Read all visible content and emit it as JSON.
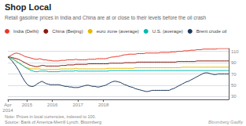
{
  "chart_data": {
    "type": "line",
    "title": "Shop Local",
    "subtitle": "Retail gasoline prices in India and China are at or close to their levels before the oil crash",
    "annotations": [
      "Note: Prices in local currencies, indexed to 100.\nSource: Bank of America-Merrill Lynch, Bloomberg",
      "Bloomberg Gadfly"
    ],
    "categories": [
      "Apr\n2014",
      null,
      null,
      null,
      null,
      null,
      null,
      null,
      null,
      "2015",
      null,
      null,
      null,
      null,
      null,
      null,
      null,
      null,
      null,
      null,
      null,
      "2016",
      null,
      null,
      null,
      null,
      null,
      null,
      null,
      null,
      null,
      null,
      null,
      "2017",
      null,
      null,
      null,
      null,
      null,
      null,
      null,
      null,
      null,
      null,
      null,
      "2018",
      null,
      null,
      null,
      null,
      null,
      null,
      null,
      null,
      null,
      null,
      null,
      null,
      null,
      null,
      null,
      null,
      null,
      null,
      null,
      null,
      null,
      null,
      null,
      null,
      null,
      null,
      null,
      null,
      null,
      null,
      null,
      null,
      null,
      null,
      null,
      null,
      null,
      null,
      null,
      null,
      null,
      null,
      null,
      null,
      null,
      null,
      null,
      null,
      null,
      null,
      null,
      null,
      null,
      null,
      null,
      null,
      null,
      null,
      null
    ],
    "series": [
      {
        "name": "India (Delhi)",
        "color": "#e8392a",
        "values": [
          100,
          102,
          104,
          106,
          107,
          106,
          105,
          103,
          101,
          100,
          99,
          98,
          97,
          96,
          96,
          97,
          96,
          95,
          95,
          94,
          94,
          93,
          93,
          93,
          93,
          94,
          94,
          94,
          95,
          95,
          95,
          95,
          96,
          95,
          95,
          95,
          95,
          95,
          96,
          96,
          96,
          96,
          97,
          97,
          97,
          97,
          97,
          98,
          99,
          100,
          100,
          101,
          101,
          102,
          103,
          104,
          104,
          105,
          105,
          105,
          105,
          106,
          106,
          106,
          106,
          107,
          107,
          107,
          107,
          107,
          107,
          107,
          108,
          108,
          108,
          108,
          108,
          109,
          109,
          109,
          110,
          110,
          110,
          111,
          111,
          111,
          112,
          112,
          112,
          113,
          113,
          113,
          114,
          114,
          114,
          114,
          114,
          114,
          114,
          115,
          115,
          115,
          115,
          115,
          115
        ]
      },
      {
        "name": "China (Beijing)",
        "color": "#8b1a10",
        "values": [
          100,
          100,
          99,
          98,
          97,
          96,
          94,
          92,
          90,
          88,
          86,
          85,
          84,
          83,
          83,
          84,
          85,
          85,
          84,
          84,
          84,
          84,
          84,
          84,
          84,
          85,
          85,
          85,
          86,
          86,
          86,
          86,
          87,
          87,
          87,
          87,
          87,
          87,
          88,
          88,
          88,
          88,
          88,
          88,
          88,
          88,
          88,
          88,
          89,
          89,
          89,
          89,
          89,
          89,
          89,
          90,
          90,
          90,
          90,
          90,
          90,
          91,
          91,
          91,
          91,
          91,
          91,
          91,
          91,
          91,
          91,
          91,
          91,
          91,
          91,
          91,
          91,
          91,
          91,
          91,
          92,
          92,
          92,
          92,
          92,
          92,
          92,
          92,
          92,
          93,
          93,
          93,
          93,
          93,
          93,
          93,
          93,
          93,
          93,
          93,
          93,
          93,
          93,
          93,
          93
        ]
      },
      {
        "name": "euro zone (average)",
        "color": "#e8b800",
        "values": [
          100,
          99,
          97,
          95,
          93,
          90,
          88,
          85,
          83,
          81,
          80,
          79,
          79,
          79,
          79,
          79,
          78,
          78,
          78,
          78,
          78,
          78,
          78,
          78,
          78,
          79,
          79,
          79,
          79,
          79,
          79,
          79,
          80,
          79,
          79,
          79,
          79,
          79,
          79,
          79,
          79,
          79,
          79,
          79,
          79,
          79,
          79,
          80,
          80,
          80,
          80,
          80,
          80,
          80,
          80,
          80,
          80,
          80,
          80,
          80,
          81,
          81,
          81,
          81,
          81,
          81,
          81,
          81,
          81,
          81,
          81,
          81,
          81,
          81,
          81,
          81,
          81,
          81,
          81,
          81,
          81,
          81,
          82,
          82,
          82,
          82,
          82,
          82,
          82,
          82,
          82,
          82,
          82,
          82,
          82,
          82,
          82,
          82,
          82,
          82,
          82,
          82,
          82,
          82,
          82
        ]
      },
      {
        "name": "U.S. (average)",
        "color": "#00bbb4",
        "values": [
          100,
          99,
          97,
          95,
          92,
          90,
          87,
          85,
          82,
          80,
          78,
          76,
          75,
          74,
          74,
          75,
          75,
          75,
          75,
          74,
          74,
          74,
          74,
          74,
          74,
          75,
          75,
          75,
          75,
          75,
          75,
          75,
          76,
          75,
          75,
          75,
          75,
          75,
          75,
          75,
          75,
          75,
          75,
          75,
          75,
          75,
          75,
          75,
          76,
          76,
          76,
          76,
          76,
          76,
          76,
          76,
          76,
          76,
          76,
          76,
          76,
          76,
          76,
          76,
          76,
          76,
          76,
          76,
          76,
          76,
          76,
          76,
          76,
          76,
          76,
          76,
          76,
          76,
          76,
          76,
          76,
          76,
          76,
          76,
          76,
          76,
          76,
          76,
          76,
          76,
          76,
          76,
          76,
          76,
          76,
          76,
          76,
          76,
          76,
          76,
          76,
          76,
          76,
          76,
          76
        ]
      },
      {
        "name": "Brent crude oil",
        "color": "#1a3a5c",
        "values": [
          100,
          97,
          93,
          88,
          83,
          77,
          70,
          63,
          57,
          52,
          49,
          48,
          48,
          50,
          53,
          55,
          57,
          55,
          53,
          52,
          51,
          51,
          51,
          51,
          51,
          50,
          49,
          48,
          48,
          47,
          47,
          46,
          46,
          46,
          47,
          48,
          49,
          50,
          50,
          49,
          48,
          48,
          47,
          47,
          48,
          49,
          50,
          52,
          54,
          56,
          57,
          57,
          56,
          55,
          53,
          51,
          50,
          48,
          47,
          46,
          44,
          43,
          42,
          41,
          40,
          39,
          39,
          40,
          41,
          41,
          41,
          41,
          41,
          41,
          41,
          41,
          41,
          43,
          44,
          46,
          48,
          50,
          52,
          54,
          56,
          57,
          59,
          61,
          63,
          65,
          67,
          69,
          71,
          72,
          72,
          71,
          70,
          69,
          69,
          70,
          70,
          70,
          70,
          70,
          70
        ]
      }
    ],
    "ylim": [
      25,
      115
    ],
    "yticks": [
      30,
      50,
      70,
      90,
      110
    ],
    "grid": true,
    "legend": "top"
  }
}
